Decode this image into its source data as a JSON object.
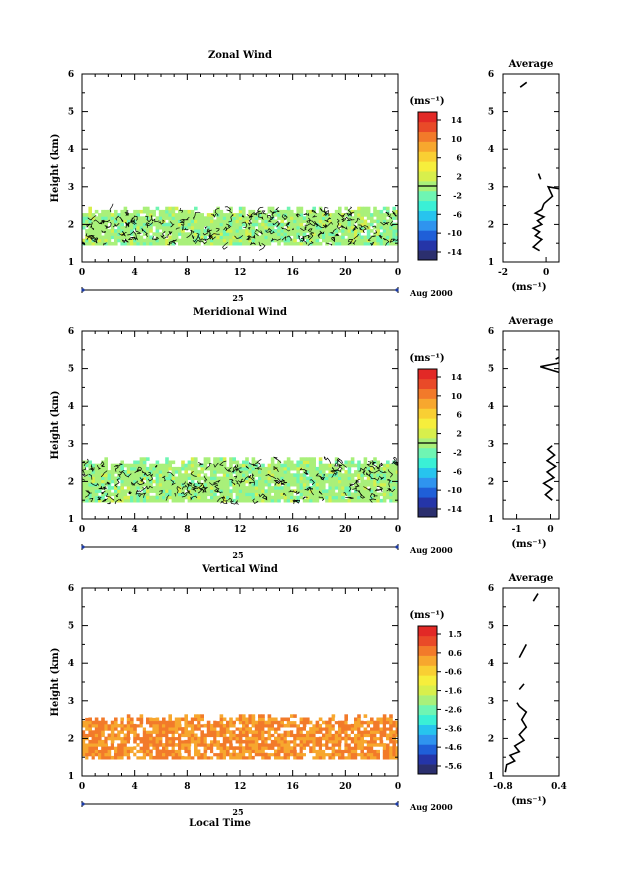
{
  "figure": {
    "x_caption": "Local Time",
    "unit_label": "(ms⁻¹)",
    "date_number": "25",
    "date_label": "Aug 2000"
  },
  "chart_data": [
    {
      "type": "heatmap",
      "title": "Zonal Wind",
      "ylabel": "Height (km)",
      "xlabel": "",
      "x_range": [
        0,
        24
      ],
      "y_range": [
        1,
        6
      ],
      "x_ticks": [
        "0",
        "4",
        "8",
        "12",
        "16",
        "20",
        "0"
      ],
      "y_ticks": [
        "1",
        "2",
        "3",
        "4",
        "5",
        "6"
      ],
      "colorbar": {
        "label": "(ms⁻¹)",
        "ticks": [
          "14",
          "10",
          "6",
          "2",
          "-2",
          "-6",
          "-10",
          "-14"
        ],
        "range": [
          -16,
          16
        ]
      },
      "data_height_range_km": [
        1.45,
        2.35
      ],
      "dominant_value": 0,
      "contours": true,
      "profile": {
        "title": "Average",
        "x_ticks": [
          "-2",
          "0"
        ],
        "x_range": [
          -2,
          0.6
        ],
        "y_range": [
          1,
          6
        ],
        "xlabel": "(ms⁻¹)",
        "points": [
          [
            -0.3,
            1.3
          ],
          [
            -0.6,
            1.4
          ],
          [
            -0.4,
            1.5
          ],
          [
            -0.2,
            1.6
          ],
          [
            -0.5,
            1.7
          ],
          [
            -0.3,
            1.8
          ],
          [
            -0.6,
            1.9
          ],
          [
            -0.2,
            2.0
          ],
          [
            -0.4,
            2.1
          ],
          [
            -0.1,
            2.2
          ],
          [
            -0.5,
            2.3
          ],
          [
            -0.2,
            2.4
          ],
          [
            -0.1,
            2.55
          ]
        ],
        "segments": [
          [
            [
              -0.1,
              2.55
            ],
            [
              0.3,
              2.75
            ],
            [
              0.1,
              3.0
            ],
            [
              0.6,
              2.95
            ]
          ],
          [
            [
              -0.35,
              3.35
            ],
            [
              -0.25,
              3.2
            ]
          ],
          [
            [
              -1.2,
              5.65
            ],
            [
              -0.9,
              5.78
            ]
          ]
        ]
      }
    },
    {
      "type": "heatmap",
      "title": "Meridional Wind",
      "ylabel": "Height (km)",
      "xlabel": "",
      "x_range": [
        0,
        24
      ],
      "y_range": [
        1,
        6
      ],
      "x_ticks": [
        "0",
        "4",
        "8",
        "12",
        "16",
        "20",
        "0"
      ],
      "y_ticks": [
        "1",
        "2",
        "3",
        "4",
        "5",
        "6"
      ],
      "colorbar": {
        "label": "(ms⁻¹)",
        "ticks": [
          "14",
          "10",
          "6",
          "2",
          "-2",
          "-6",
          "-10",
          "-14"
        ],
        "range": [
          -16,
          16
        ]
      },
      "data_height_range_km": [
        1.45,
        2.5
      ],
      "dominant_value": 0,
      "contours": true,
      "profile": {
        "title": "Average",
        "x_ticks": [
          "-1",
          "0"
        ],
        "x_range": [
          -1.4,
          0.25
        ],
        "y_range": [
          1,
          6
        ],
        "xlabel": "(ms⁻¹)",
        "points": [
          [
            0.05,
            1.5
          ],
          [
            -0.15,
            1.65
          ],
          [
            0.05,
            1.8
          ],
          [
            -0.2,
            1.95
          ],
          [
            0.1,
            2.1
          ],
          [
            -0.1,
            2.25
          ],
          [
            0.15,
            2.4
          ],
          [
            -0.1,
            2.55
          ],
          [
            0.12,
            2.7
          ],
          [
            -0.08,
            2.85
          ],
          [
            0.05,
            2.95
          ]
        ],
        "segments": [
          [
            [
              0.25,
              5.15
            ],
            [
              -0.3,
              5.05
            ],
            [
              0.25,
              4.9
            ]
          ],
          [
            [
              0.15,
              5.25
            ],
            [
              0.25,
              5.3
            ]
          ]
        ]
      }
    },
    {
      "type": "heatmap",
      "title": "Vertical Wind",
      "ylabel": "Height (km)",
      "xlabel": "Local Time",
      "x_range": [
        0,
        24
      ],
      "y_range": [
        1,
        6
      ],
      "x_ticks": [
        "0",
        "4",
        "8",
        "12",
        "16",
        "20",
        "0"
      ],
      "y_ticks": [
        "1",
        "2",
        "3",
        "4",
        "5",
        "6"
      ],
      "colorbar": {
        "label": "(ms⁻¹)",
        "ticks": [
          "1.5",
          "0.6",
          "-0.6",
          "-1.6",
          "-2.6",
          "-3.6",
          "-4.6",
          "-5.6"
        ],
        "range": [
          -6.0,
          1.9
        ]
      },
      "data_height_range_km": [
        1.45,
        2.5
      ],
      "dominant_value": 0.5,
      "contours": false,
      "profile": {
        "title": "Average",
        "x_ticks": [
          "-0.8",
          "0.4"
        ],
        "x_range": [
          -0.8,
          0.4
        ],
        "y_range": [
          1,
          6
        ],
        "xlabel": "(ms⁻¹)",
        "points": [
          [
            -0.75,
            1.1
          ],
          [
            -0.72,
            1.3
          ],
          [
            -0.55,
            1.4
          ],
          [
            -0.65,
            1.55
          ],
          [
            -0.45,
            1.65
          ],
          [
            -0.55,
            1.8
          ],
          [
            -0.35,
            1.95
          ],
          [
            -0.45,
            2.1
          ],
          [
            -0.3,
            2.3
          ],
          [
            -0.4,
            2.5
          ],
          [
            -0.3,
            2.7
          ],
          [
            -0.45,
            2.85
          ],
          [
            -0.5,
            2.95
          ]
        ],
        "segments": [
          [
            [
              -0.45,
              3.3
            ],
            [
              -0.35,
              3.45
            ]
          ],
          [
            [
              -0.45,
              4.15
            ],
            [
              -0.3,
              4.5
            ]
          ],
          [
            [
              -0.15,
              5.65
            ],
            [
              -0.05,
              5.85
            ]
          ]
        ]
      }
    }
  ]
}
